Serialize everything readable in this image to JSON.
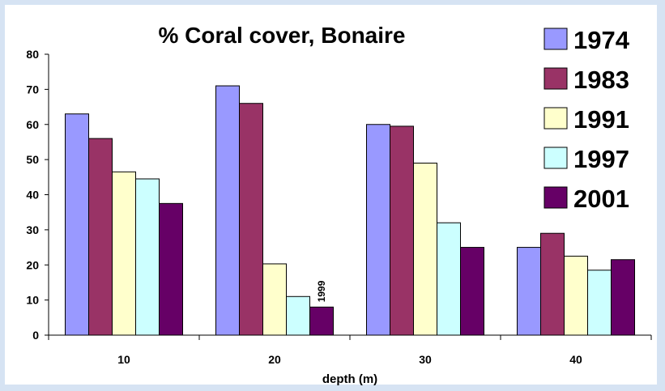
{
  "chart_data": {
    "type": "bar",
    "title": "%  Coral cover, Bonaire",
    "xlabel": "depth (m)",
    "ylabel": "",
    "ylim": [
      0,
      80
    ],
    "yticks": [
      0,
      10,
      20,
      30,
      40,
      50,
      60,
      70,
      80
    ],
    "categories": [
      "10",
      "20",
      "30",
      "40"
    ],
    "series": [
      {
        "name": "1974",
        "color": "#9999ff",
        "values": [
          63,
          71,
          60,
          25
        ]
      },
      {
        "name": "1983",
        "color": "#993366",
        "values": [
          56,
          66,
          59.5,
          29
        ]
      },
      {
        "name": "1991",
        "color": "#ffffcc",
        "values": [
          46.5,
          20.3,
          49,
          22.5
        ]
      },
      {
        "name": "1997",
        "color": "#ccffff",
        "values": [
          44.5,
          11,
          32,
          18.5
        ]
      },
      {
        "name": "2001",
        "color": "#660066",
        "values": [
          37.5,
          8,
          25,
          21.5
        ]
      }
    ],
    "annotations": [
      {
        "text": "1999",
        "category": "20",
        "series": "2001"
      }
    ],
    "legend_position": "top-right",
    "grid": false
  }
}
